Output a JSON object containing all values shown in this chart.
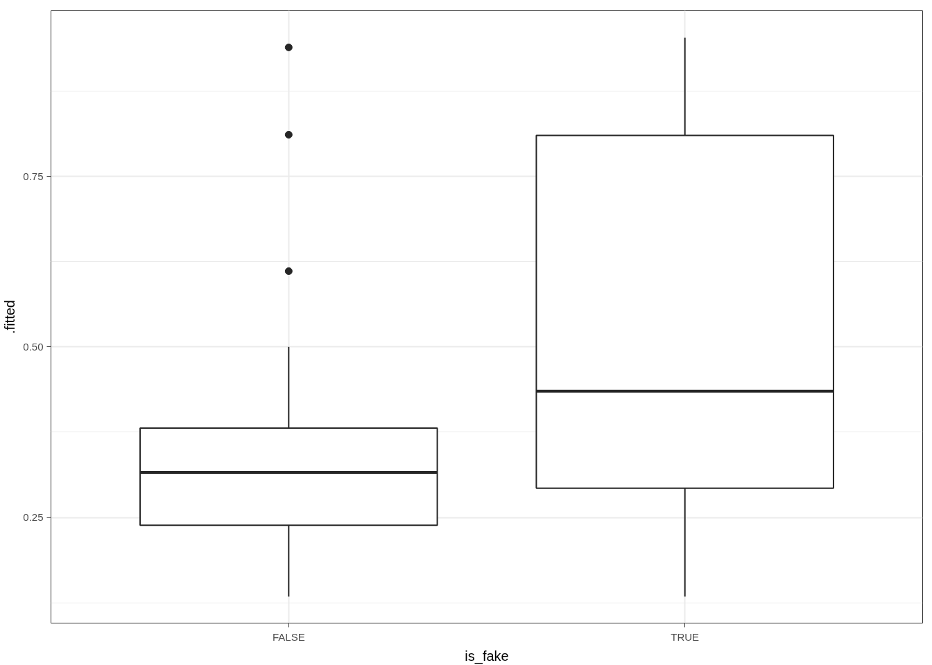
{
  "chart_data": {
    "type": "box",
    "xlabel": "is_fake",
    "ylabel": ".fitted",
    "categories": [
      "FALSE",
      "TRUE"
    ],
    "boxes": [
      {
        "low": 0.134,
        "q1": 0.2385,
        "median": 0.316,
        "q3": 0.381,
        "high": 0.5,
        "outliers": [
          0.939,
          0.811,
          0.611
        ]
      },
      {
        "low": 0.134,
        "q1": 0.293,
        "median": 0.435,
        "q3": 0.81,
        "high": 0.953
      }
    ],
    "color": "#262626",
    "ylim": [
      0.0952,
      0.9927
    ],
    "yticks": [
      0.25,
      {
        "value": 0.5,
        "label": "0.50"
      },
      0.75
    ],
    "grid": true
  }
}
